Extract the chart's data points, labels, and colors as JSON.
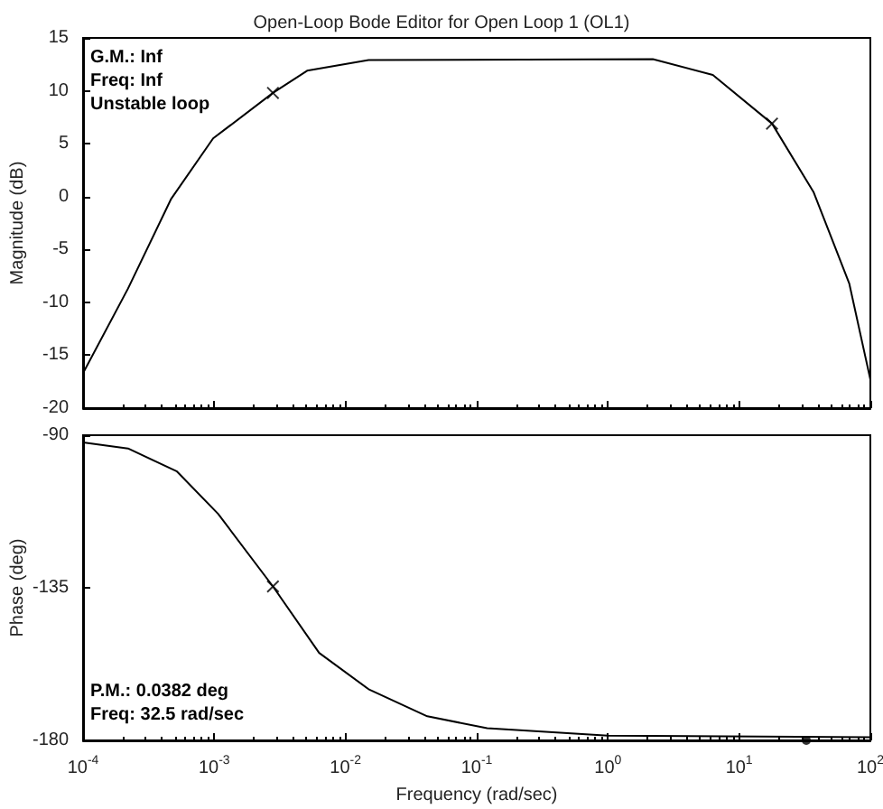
{
  "chart_data": [
    {
      "type": "line",
      "title": "Open-Loop Bode Editor for Open Loop 1 (OL1)",
      "ylabel": "Magnitude (dB)",
      "log": "x",
      "grid": false,
      "tick_labels": "y",
      "xlim": [
        0.0001,
        100
      ],
      "xticks": [
        {
          "value": 0.0001,
          "label": null
        },
        {
          "value": 0.001,
          "label": null
        },
        {
          "value": 0.01,
          "label": null
        },
        {
          "value": 0.1,
          "label": null
        },
        {
          "value": 1,
          "label": null
        },
        {
          "value": 10,
          "label": null
        },
        {
          "value": 100,
          "label": null
        }
      ],
      "ylim": [
        -20,
        15
      ],
      "yticks": [
        -20,
        -15,
        -10,
        -5,
        0,
        5,
        10,
        15
      ],
      "annotations": [
        "G.M.: Inf",
        "Freq: Inf",
        "Unstable loop"
      ],
      "series": [
        {
          "color": "#000000",
          "marker": "none",
          "x": [
            0.0001,
            0.00022,
            0.00047,
            0.00098,
            0.0028,
            0.0051,
            0.015,
            2.2,
            6.3,
            17.8,
            37,
            69,
            100
          ],
          "values": [
            -16.7,
            -8.7,
            -0.2,
            5.5,
            9.8,
            11.9,
            12.9,
            13.0,
            11.5,
            6.9,
            0.4,
            -8.2,
            -17.3
          ]
        },
        {
          "type": "scatter",
          "color": "#000000",
          "marker": "cross",
          "x": [
            0.0028,
            17.8
          ],
          "values": [
            9.8,
            6.9
          ]
        }
      ]
    },
    {
      "type": "line",
      "xlabel": "Frequency (rad/sec)",
      "ylabel": "Phase (deg)",
      "log": "x",
      "grid": false,
      "xlim": [
        0.0001,
        100
      ],
      "xticks": [
        {
          "value": 0.0001,
          "label": "10$^{-4}$"
        },
        {
          "value": 0.001,
          "label": "10$^{-3}$"
        },
        {
          "value": 0.01,
          "label": "10$^{-2}$"
        },
        {
          "value": 0.1,
          "label": "10$^{-1}$"
        },
        {
          "value": 1,
          "label": "10$^{0}$"
        },
        {
          "value": 10,
          "label": "10$^{1}$"
        },
        {
          "value": 100,
          "label": "10$^{2}$"
        }
      ],
      "ylim": [
        -180,
        -90
      ],
      "yticks": [
        -180,
        -135,
        -90
      ],
      "annotations": [
        "P.M.: 0.0382 deg",
        "Freq: 32.5 rad/sec"
      ],
      "series": [
        {
          "color": "#000000",
          "marker": "none",
          "x": [
            0.0001,
            0.00022,
            0.00052,
            0.00107,
            0.0028,
            0.0063,
            0.015,
            0.042,
            0.12,
            1,
            100
          ],
          "values": [
            -92.1,
            -93.9,
            -100.7,
            -113.2,
            -134.6,
            -154.2,
            -164.9,
            -172.9,
            -176.4,
            -178.6,
            -179.1
          ]
        },
        {
          "type": "scatter",
          "color": "#000000",
          "marker": "cross",
          "x": [
            0.0028
          ],
          "values": [
            -134.6
          ]
        },
        {
          "type": "scatter",
          "color": "#000000",
          "marker": "circle",
          "x": [
            32.5
          ],
          "values": [
            -180
          ]
        }
      ]
    }
  ]
}
